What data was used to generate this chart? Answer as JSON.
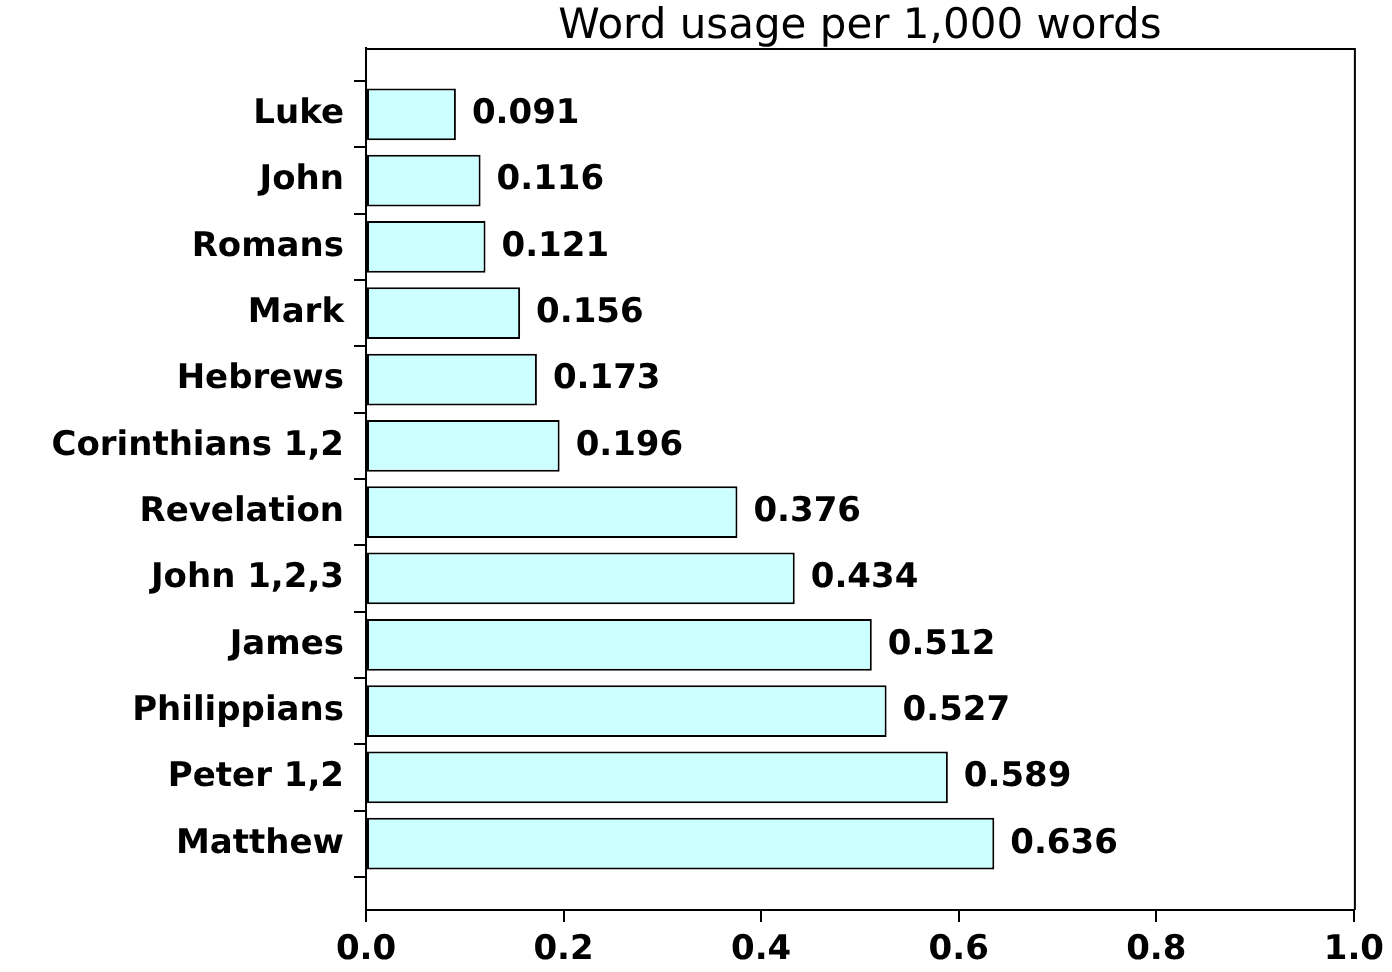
{
  "chart_data": {
    "type": "bar",
    "orientation": "horizontal",
    "title": "Word usage per 1,000 words",
    "categories": [
      "Luke",
      "John",
      "Romans",
      "Mark",
      "Hebrews",
      "Corinthians 1,2",
      "Revelation",
      "John 1,2,3",
      "James",
      "Philippians",
      "Peter 1,2",
      "Matthew"
    ],
    "values": [
      0.091,
      0.116,
      0.121,
      0.156,
      0.173,
      0.196,
      0.376,
      0.434,
      0.512,
      0.527,
      0.589,
      0.636
    ],
    "color": "#ccffff",
    "xlim": [
      0,
      1
    ],
    "xticks": [
      {
        "value": 0,
        "label": "0.0"
      },
      0.2,
      0.4,
      0.6,
      0.8,
      {
        "value": 1,
        "label": "1.0"
      }
    ],
    "data_labels": true,
    "grid": false
  }
}
